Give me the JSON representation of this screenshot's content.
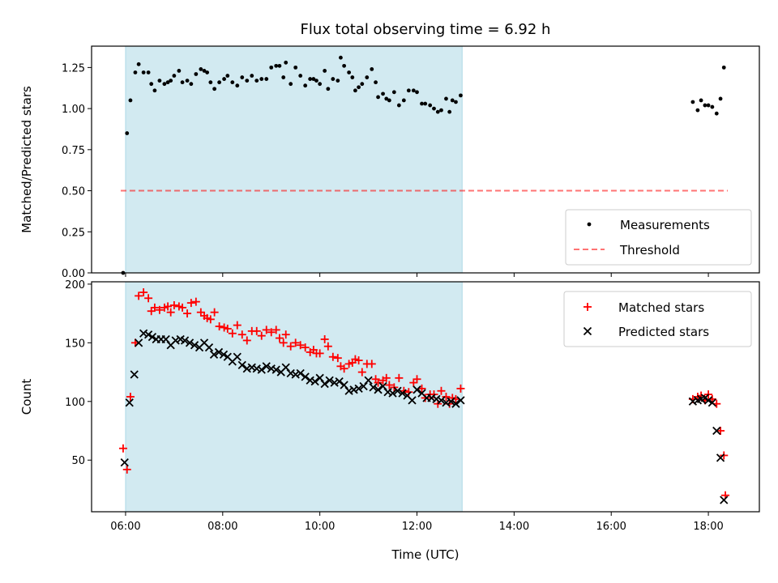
{
  "title": "Flux total observing time = 6.92 h",
  "colors": {
    "shade": "#add8e6",
    "measurement": "#000000",
    "threshold": "#ff0000",
    "matched": "#ff0000",
    "predicted": "#000000"
  },
  "chart_data": [
    {
      "type": "scatter",
      "panel": "top",
      "ylabel": "Matched/Predicted stars",
      "xlim": [
        5.3,
        19.05
      ],
      "ylim": [
        0,
        1.38
      ],
      "yticks": [
        0.0,
        0.25,
        0.5,
        0.75,
        1.0,
        1.25
      ],
      "ytick_labels": [
        "0.00",
        "0.25",
        "0.50",
        "0.75",
        "1.00",
        "1.25"
      ],
      "shaded_span": [
        6.0,
        12.93
      ],
      "threshold": {
        "value": 0.5,
        "x": [
          5.9,
          18.4
        ]
      },
      "legend": {
        "placement": "lower right",
        "entries": [
          "Measurements",
          "Threshold"
        ]
      },
      "series": [
        {
          "name": "Measurements",
          "x": [
            5.95,
            6.03,
            6.1,
            6.2,
            6.27,
            6.37,
            6.47,
            6.53,
            6.6,
            6.7,
            6.8,
            6.87,
            6.93,
            7.0,
            7.1,
            7.17,
            7.27,
            7.35,
            7.45,
            7.55,
            7.62,
            7.68,
            7.75,
            7.83,
            7.93,
            8.03,
            8.1,
            8.2,
            8.3,
            8.4,
            8.5,
            8.6,
            8.7,
            8.8,
            8.9,
            9.0,
            9.1,
            9.17,
            9.25,
            9.3,
            9.4,
            9.5,
            9.6,
            9.7,
            9.8,
            9.87,
            9.93,
            10.0,
            10.1,
            10.17,
            10.27,
            10.37,
            10.43,
            10.5,
            10.6,
            10.67,
            10.73,
            10.8,
            10.87,
            10.97,
            11.07,
            11.15,
            11.2,
            11.3,
            11.37,
            11.43,
            11.53,
            11.63,
            11.73,
            11.83,
            11.93,
            12.0,
            12.1,
            12.17,
            12.27,
            12.35,
            12.43,
            12.5,
            12.6,
            12.67,
            12.73,
            12.8,
            12.9,
            17.68,
            17.78,
            17.85,
            17.93,
            18.0,
            18.08,
            18.17,
            18.25,
            18.32
          ],
          "y": [
            0.0,
            0.85,
            1.05,
            1.22,
            1.27,
            1.22,
            1.22,
            1.15,
            1.11,
            1.17,
            1.15,
            1.16,
            1.17,
            1.2,
            1.23,
            1.16,
            1.17,
            1.15,
            1.21,
            1.24,
            1.23,
            1.22,
            1.16,
            1.12,
            1.16,
            1.18,
            1.2,
            1.16,
            1.14,
            1.19,
            1.17,
            1.2,
            1.17,
            1.18,
            1.18,
            1.25,
            1.26,
            1.26,
            1.19,
            1.28,
            1.15,
            1.25,
            1.2,
            1.14,
            1.18,
            1.18,
            1.17,
            1.15,
            1.23,
            1.12,
            1.18,
            1.17,
            1.31,
            1.26,
            1.22,
            1.19,
            1.11,
            1.13,
            1.15,
            1.19,
            1.24,
            1.16,
            1.07,
            1.09,
            1.06,
            1.05,
            1.1,
            1.02,
            1.05,
            1.11,
            1.11,
            1.1,
            1.03,
            1.03,
            1.02,
            1.0,
            0.98,
            0.99,
            1.06,
            0.98,
            1.05,
            1.04,
            1.08,
            1.04,
            0.99,
            1.05,
            1.02,
            1.02,
            1.01,
            0.97,
            1.06,
            1.25
          ]
        }
      ]
    },
    {
      "type": "scatter",
      "panel": "bottom",
      "xlabel": "Time (UTC)",
      "ylabel": "Count",
      "xlim": [
        5.3,
        19.05
      ],
      "ylim": [
        6,
        202
      ],
      "xticks": [
        6,
        8,
        10,
        12,
        14,
        16,
        18
      ],
      "xtick_labels": [
        "06:00",
        "08:00",
        "10:00",
        "12:00",
        "14:00",
        "16:00",
        "18:00"
      ],
      "yticks": [
        50,
        100,
        150,
        200
      ],
      "ytick_labels": [
        "50",
        "100",
        "150",
        "200"
      ],
      "shaded_span": [
        6.0,
        12.93
      ],
      "legend": {
        "placement": "upper right",
        "entries": [
          "Matched stars",
          "Predicted stars"
        ]
      },
      "series": [
        {
          "name": "Matched stars",
          "marker": "plus",
          "x": [
            5.95,
            6.03,
            6.1,
            6.2,
            6.27,
            6.37,
            6.47,
            6.53,
            6.6,
            6.7,
            6.8,
            6.87,
            6.93,
            7.0,
            7.1,
            7.17,
            7.27,
            7.35,
            7.45,
            7.55,
            7.62,
            7.68,
            7.75,
            7.83,
            7.93,
            8.03,
            8.1,
            8.2,
            8.3,
            8.4,
            8.5,
            8.6,
            8.7,
            8.8,
            8.9,
            9.0,
            9.1,
            9.17,
            9.25,
            9.3,
            9.4,
            9.5,
            9.6,
            9.7,
            9.8,
            9.87,
            9.93,
            10.0,
            10.1,
            10.17,
            10.27,
            10.37,
            10.43,
            10.5,
            10.6,
            10.67,
            10.73,
            10.8,
            10.87,
            10.97,
            11.07,
            11.15,
            11.2,
            11.3,
            11.37,
            11.43,
            11.53,
            11.63,
            11.73,
            11.83,
            11.93,
            12.0,
            12.1,
            12.17,
            12.27,
            12.35,
            12.43,
            12.5,
            12.6,
            12.67,
            12.73,
            12.8,
            12.9,
            17.68,
            17.78,
            17.85,
            17.93,
            18.0,
            18.08,
            18.17,
            18.25,
            18.32
          ],
          "y": [
            60,
            42,
            104,
            150,
            190,
            193,
            188,
            177,
            180,
            178,
            180,
            181,
            176,
            182,
            181,
            180,
            175,
            184,
            185,
            176,
            173,
            171,
            170,
            176,
            164,
            163,
            162,
            158,
            165,
            157,
            152,
            160,
            160,
            156,
            161,
            159,
            161,
            154,
            150,
            157,
            147,
            150,
            148,
            146,
            142,
            144,
            141,
            141,
            153,
            147,
            138,
            137,
            130,
            128,
            132,
            133,
            136,
            135,
            125,
            132,
            132,
            119,
            116,
            118,
            120,
            114,
            112,
            120,
            109,
            108,
            116,
            119,
            111,
            103,
            106,
            106,
            98,
            109,
            104,
            98,
            103,
            102,
            111,
            102,
            104,
            105,
            101,
            106,
            102,
            98,
            75,
            54
          ],
          "extra_points": [
            [
              18.35,
              20
            ]
          ]
        },
        {
          "name": "Predicted stars",
          "marker": "x",
          "x": [
            5.98,
            6.08,
            6.18,
            6.27,
            6.37,
            6.47,
            6.55,
            6.63,
            6.73,
            6.83,
            6.93,
            7.03,
            7.13,
            7.22,
            7.32,
            7.42,
            7.52,
            7.62,
            7.72,
            7.82,
            7.92,
            8.02,
            8.1,
            8.2,
            8.3,
            8.4,
            8.5,
            8.6,
            8.7,
            8.8,
            8.9,
            9.0,
            9.1,
            9.2,
            9.3,
            9.4,
            9.5,
            9.6,
            9.7,
            9.8,
            9.9,
            10.0,
            10.1,
            10.2,
            10.3,
            10.4,
            10.5,
            10.6,
            10.7,
            10.8,
            10.9,
            11.0,
            11.1,
            11.2,
            11.3,
            11.4,
            11.5,
            11.6,
            11.7,
            11.8,
            11.9,
            12.0,
            12.1,
            12.2,
            12.3,
            12.4,
            12.5,
            12.6,
            12.7,
            12.8,
            12.9,
            17.68,
            17.78,
            17.85,
            17.93,
            18.0,
            18.08,
            18.17,
            18.25,
            18.32
          ],
          "y": [
            48,
            99,
            123,
            150,
            158,
            157,
            155,
            153,
            153,
            153,
            148,
            152,
            153,
            152,
            150,
            148,
            146,
            150,
            146,
            140,
            142,
            140,
            138,
            134,
            138,
            131,
            128,
            129,
            128,
            127,
            130,
            128,
            127,
            125,
            129,
            124,
            123,
            124,
            121,
            118,
            117,
            120,
            115,
            118,
            116,
            117,
            114,
            109,
            110,
            111,
            113,
            118,
            112,
            110,
            113,
            108,
            107,
            109,
            107,
            105,
            101,
            110,
            107,
            103,
            103,
            102,
            101,
            99,
            100,
            98,
            101,
            100,
            101,
            102,
            103,
            101,
            99,
            75,
            52,
            16
          ]
        }
      ]
    }
  ]
}
